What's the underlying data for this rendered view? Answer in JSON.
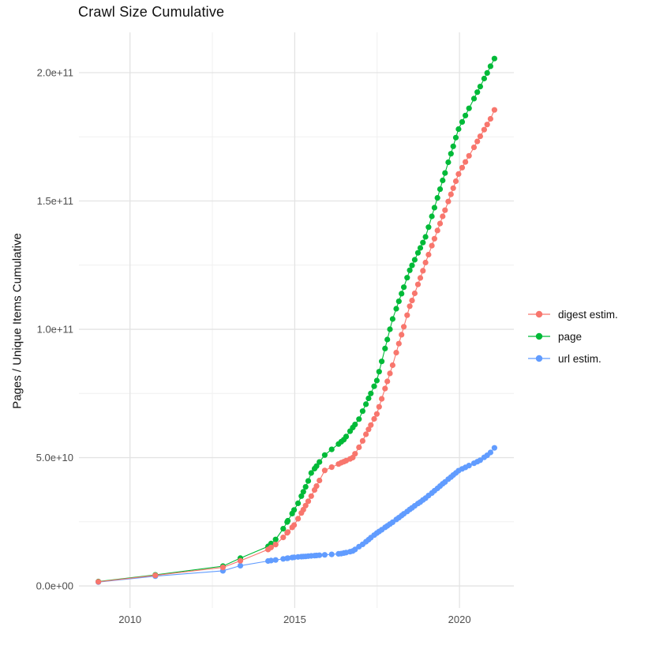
{
  "title": "Crawl Size Cumulative",
  "chart_data": {
    "type": "scatter",
    "title": "Crawl Size Cumulative",
    "xlabel": "",
    "ylabel": "Pages / Unique Items Cumulative",
    "grid": true,
    "legend_position": "right",
    "background": "#ffffff",
    "grid_major_color": "#e3e3e3",
    "grid_minor_color": "#f0f0f0",
    "xlim": [
      2008.45,
      2021.65
    ],
    "ylim": [
      -8600000000.0,
      215700000000.0
    ],
    "x_ticks": [
      2010,
      2015,
      2020
    ],
    "x_tick_labels": [
      "2010",
      "2015",
      "2020"
    ],
    "x_minor_ticks": [
      2012.5,
      2017.5
    ],
    "y_ticks": [
      0,
      50000000000.0,
      100000000000.0,
      150000000000.0,
      200000000000.0
    ],
    "y_tick_labels": [
      "0.0e+00",
      "5.0e+10",
      "1.0e+11",
      "1.5e+11",
      "2.0e+11"
    ],
    "y_minor_ticks": [
      25000000000.0,
      75000000000.0,
      125000000000.0,
      175000000000.0
    ],
    "value_unit": 1000000000.0,
    "x": [
      2009.04,
      2010.77,
      2012.82,
      2013.35,
      2014.19,
      2014.28,
      2014.42,
      2014.65,
      2014.77,
      2014.79,
      2014.92,
      2014.98,
      2015.1,
      2015.2,
      2015.26,
      2015.33,
      2015.41,
      2015.5,
      2015.6,
      2015.66,
      2015.75,
      2015.91,
      2016.12,
      2016.33,
      2016.41,
      2016.49,
      2016.56,
      2016.68,
      2016.76,
      2016.83,
      2016.95,
      2017.06,
      2017.16,
      2017.24,
      2017.31,
      2017.41,
      2017.49,
      2017.56,
      2017.64,
      2017.74,
      2017.81,
      2017.89,
      2017.97,
      2018.08,
      2018.16,
      2018.24,
      2018.31,
      2018.41,
      2018.49,
      2018.56,
      2018.64,
      2018.74,
      2018.81,
      2018.89,
      2018.97,
      2019.06,
      2019.16,
      2019.24,
      2019.33,
      2019.41,
      2019.49,
      2019.56,
      2019.66,
      2019.74,
      2019.81,
      2019.89,
      2019.97,
      2020.08,
      2020.18,
      2020.29,
      2020.44,
      2020.54,
      2020.63,
      2020.75,
      2020.84,
      2020.94,
      2021.06
    ],
    "series": [
      {
        "name": "digest estim.",
        "slug": "digest-estim",
        "color": "#F8766D",
        "values": [
          1.6,
          4.1,
          7.2,
          9.8,
          14.2,
          15.0,
          16.1,
          18.9,
          20.7,
          21.0,
          22.8,
          23.7,
          26.2,
          28.4,
          29.7,
          31.3,
          33.0,
          35.0,
          37.4,
          38.9,
          41.1,
          45.0,
          46.3,
          47.5,
          48.0,
          48.4,
          48.8,
          49.5,
          50.0,
          51.5,
          54.0,
          56.5,
          59.1,
          61.0,
          62.7,
          65.1,
          67.0,
          69.8,
          72.9,
          76.9,
          79.7,
          82.8,
          86.0,
          90.9,
          94.4,
          97.9,
          101.0,
          105.5,
          109.0,
          111.2,
          114.0,
          117.5,
          120.0,
          122.8,
          126.0,
          129.1,
          132.6,
          135.3,
          138.5,
          141.2,
          144.0,
          146.4,
          149.8,
          152.6,
          155.0,
          157.7,
          160.5,
          163.0,
          165.2,
          167.6,
          170.9,
          173.2,
          175.2,
          177.8,
          179.8,
          182.0,
          185.5
        ]
      },
      {
        "name": "page",
        "slug": "page",
        "color": "#00BA38",
        "values": [
          1.7,
          4.3,
          7.7,
          10.8,
          15.4,
          16.5,
          18.1,
          22.3,
          24.9,
          25.4,
          28.2,
          29.6,
          32.2,
          35.0,
          36.7,
          38.6,
          40.9,
          44.0,
          45.7,
          46.7,
          48.3,
          51.0,
          53.2,
          55.3,
          56.2,
          57.0,
          58.2,
          60.3,
          61.7,
          62.9,
          65.0,
          68.1,
          70.8,
          73.1,
          75.0,
          77.8,
          80.0,
          83.5,
          87.5,
          92.5,
          96.0,
          100.0,
          104.0,
          108.0,
          110.9,
          113.9,
          116.4,
          120.1,
          123.0,
          124.9,
          127.1,
          129.8,
          131.7,
          133.8,
          136.0,
          139.8,
          144.0,
          147.4,
          151.2,
          154.6,
          158.0,
          160.9,
          165.1,
          168.4,
          171.3,
          174.7,
          178.0,
          180.8,
          183.3,
          186.1,
          189.9,
          192.4,
          194.6,
          197.7,
          199.9,
          202.5,
          205.5
        ]
      },
      {
        "name": "url estim.",
        "slug": "url-estim",
        "color": "#619CFF",
        "values": [
          1.5,
          3.8,
          5.9,
          7.9,
          9.7,
          9.9,
          10.1,
          10.55,
          10.75,
          10.8,
          11.05,
          11.15,
          11.3,
          11.4,
          11.45,
          11.5,
          11.6,
          11.7,
          11.8,
          11.85,
          11.95,
          12.1,
          12.3,
          12.5,
          12.6,
          12.8,
          13.0,
          13.35,
          13.6,
          14.2,
          15.3,
          16.2,
          17.2,
          18.0,
          18.8,
          19.8,
          20.6,
          21.2,
          21.9,
          22.8,
          23.4,
          24.1,
          24.8,
          25.9,
          26.6,
          27.4,
          28.1,
          29.0,
          29.8,
          30.4,
          31.2,
          32.1,
          32.7,
          33.5,
          34.2,
          35.2,
          36.2,
          37.1,
          38.0,
          38.9,
          39.8,
          40.5,
          41.6,
          42.4,
          43.2,
          44.0,
          44.9,
          45.6,
          46.2,
          46.9,
          47.8,
          48.4,
          49.0,
          50.1,
          50.9,
          52.0,
          53.8
        ]
      }
    ],
    "draw_order": [
      1,
      2,
      0
    ],
    "point_radius": 3.6,
    "line_width": 1.1
  }
}
